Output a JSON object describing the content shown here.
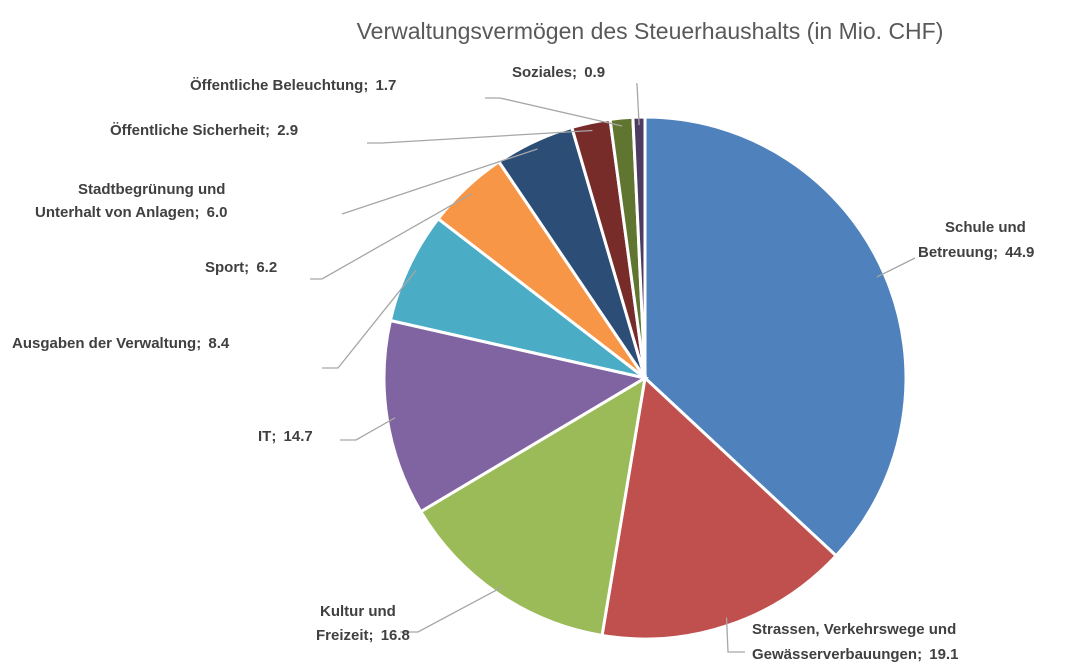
{
  "chart_data": {
    "type": "pie",
    "title": "Verwaltungsvermögen des Steuerhaushalts (in Mio. CHF)",
    "categories": [
      "Schule und Betreuung",
      "Strassen, Verkehrswege und Gewässerverbauungen",
      "Kultur und Freizeit",
      "IT",
      "Ausgaben der Verwaltung",
      "Sport",
      "Stadtbegrünung und Unterhalt von Anlagen",
      "Öffentliche Sicherheit",
      "Öffentliche Beleuchtung",
      "Soziales"
    ],
    "values": [
      44.9,
      19.1,
      16.8,
      14.7,
      8.4,
      6.2,
      6.0,
      2.9,
      1.7,
      0.9
    ],
    "value_labels": [
      "44.9",
      "19.1",
      "16.8",
      "14.7",
      "8.4",
      "6.2",
      "6.0",
      "2.9",
      "1.7",
      "0.9"
    ],
    "label_separator": "; ",
    "colors": [
      "#4f81bd",
      "#c0504d",
      "#9bbb59",
      "#8064a2",
      "#4bacc6",
      "#f79646",
      "#2c4d75",
      "#772c2a",
      "#5f7530",
      "#4d3b62"
    ]
  }
}
